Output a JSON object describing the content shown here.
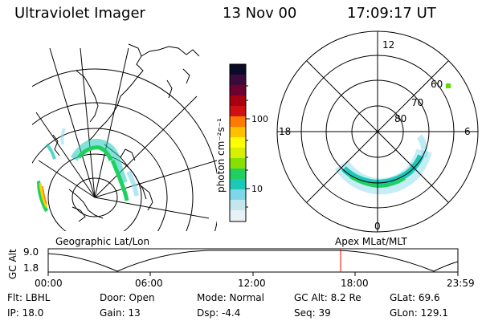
{
  "header": {
    "title": "Ultraviolet Imager",
    "date": "13 Nov 00",
    "time": "17:09:17 UT"
  },
  "colorbar": {
    "unit_label": "photon cm⁻²s⁻¹",
    "ticks": [
      "100",
      "10"
    ],
    "colors": [
      "#0b0b28",
      "#3a0a3a",
      "#6e0030",
      "#a80010",
      "#d01010",
      "#ff7a00",
      "#ffc000",
      "#ffff00",
      "#d8f000",
      "#88e000",
      "#1fd060",
      "#1dc8b8",
      "#7fd8e8",
      "#dcebf2"
    ]
  },
  "left_panel": {
    "label": "Geographic Lat/Lon"
  },
  "right_panel": {
    "label": "Apex MLat/MLT",
    "mlt_labels": {
      "top": "12",
      "left": "18",
      "right": "6",
      "bottom": "0"
    },
    "lat_labels": [
      "60",
      "70",
      "80"
    ]
  },
  "timeline": {
    "ylabel": "GC Alt",
    "y_ticks": [
      "9.0",
      "1.8"
    ],
    "x_ticks": [
      "00:00",
      "06:00",
      "12:00",
      "18:00",
      "23:59"
    ],
    "marker_color": "#ff0000"
  },
  "info": {
    "flt": "Flt: LBHL",
    "ip": "IP: 18.0",
    "door": "Door: Open",
    "gain": "Gain: 13",
    "mode": "Mode: Normal",
    "dsp": "Dsp:    -4.4",
    "gcalt": "GC Alt: 8.2 Re",
    "seq": "Seq: 39",
    "glat": "GLat:  69.6",
    "glon": "GLon: 129.1"
  }
}
